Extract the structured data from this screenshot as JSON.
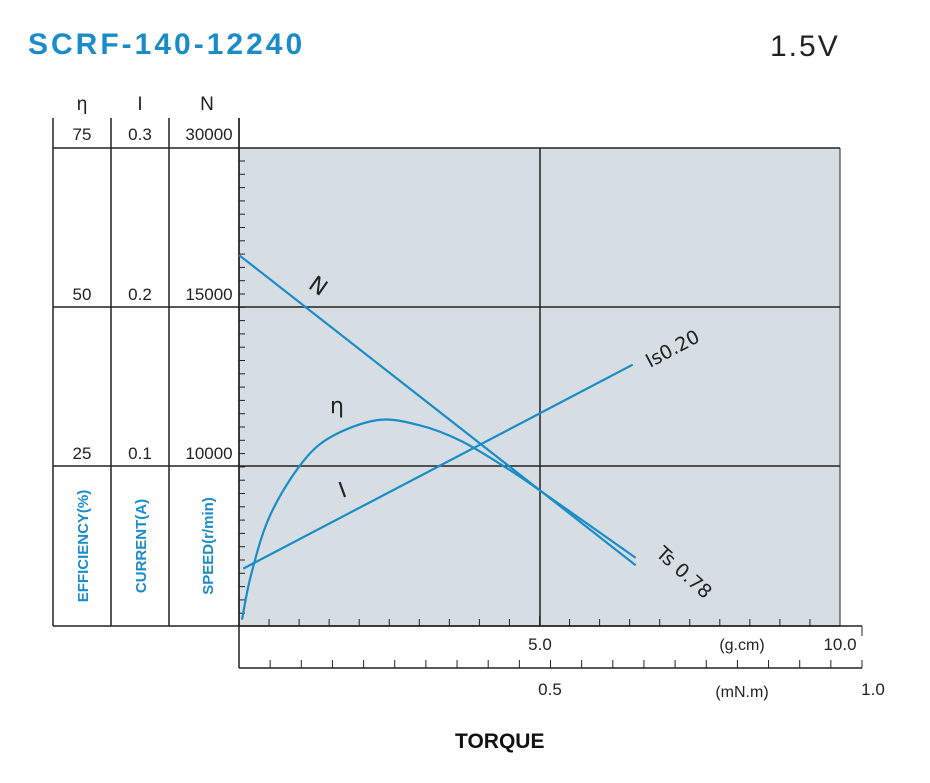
{
  "header": {
    "title": "SCRF-140-12240",
    "voltage": "1.5V"
  },
  "chart_data": {
    "type": "line",
    "xlabel": "TORQUE",
    "x_axes": [
      {
        "unit": "(g.cm)",
        "range": [
          0,
          10
        ],
        "tick_labels": [
          "5.0",
          "10.0"
        ]
      },
      {
        "unit": "(mN.m)",
        "range": [
          0,
          1.0
        ],
        "tick_labels": [
          "0.5",
          "1.0"
        ]
      }
    ],
    "y_axes": [
      {
        "symbol": "η",
        "label": "EFFICIENCY(%)",
        "tick_labels": [
          "75",
          "50",
          "25"
        ]
      },
      {
        "symbol": "I",
        "label": "CURRENT(A)",
        "tick_labels": [
          "0.3",
          "0.2",
          "0.1"
        ]
      },
      {
        "symbol": "N",
        "label": "SPEED(r/min)",
        "tick_labels": [
          "30000",
          "15000",
          "10000"
        ]
      }
    ],
    "grid": true,
    "colors": {
      "curve": "#1a8cc8",
      "plot_bg": "#d6dee3",
      "grid": "#222222"
    },
    "series": [
      {
        "name": "N",
        "axis": "speed",
        "x": [
          0,
          6.6
        ],
        "y": [
          19900,
          6900
        ]
      },
      {
        "name": "I",
        "axis": "current",
        "x": [
          0.07,
          6.55
        ],
        "y": [
          0.036,
          0.164
        ]
      },
      {
        "name": "η",
        "axis": "efficiency",
        "x": [
          0.05,
          0.2,
          0.5,
          1.0,
          1.5,
          2.3,
          3.0,
          3.7,
          4.5,
          5.0,
          5.5,
          6.6
        ],
        "y": [
          1,
          8,
          17,
          25,
          29.5,
          32.3,
          31.5,
          29,
          24.5,
          21.3,
          18,
          10.7
        ]
      }
    ],
    "annotations": [
      "Is0.20",
      "Ts 0.78"
    ]
  }
}
